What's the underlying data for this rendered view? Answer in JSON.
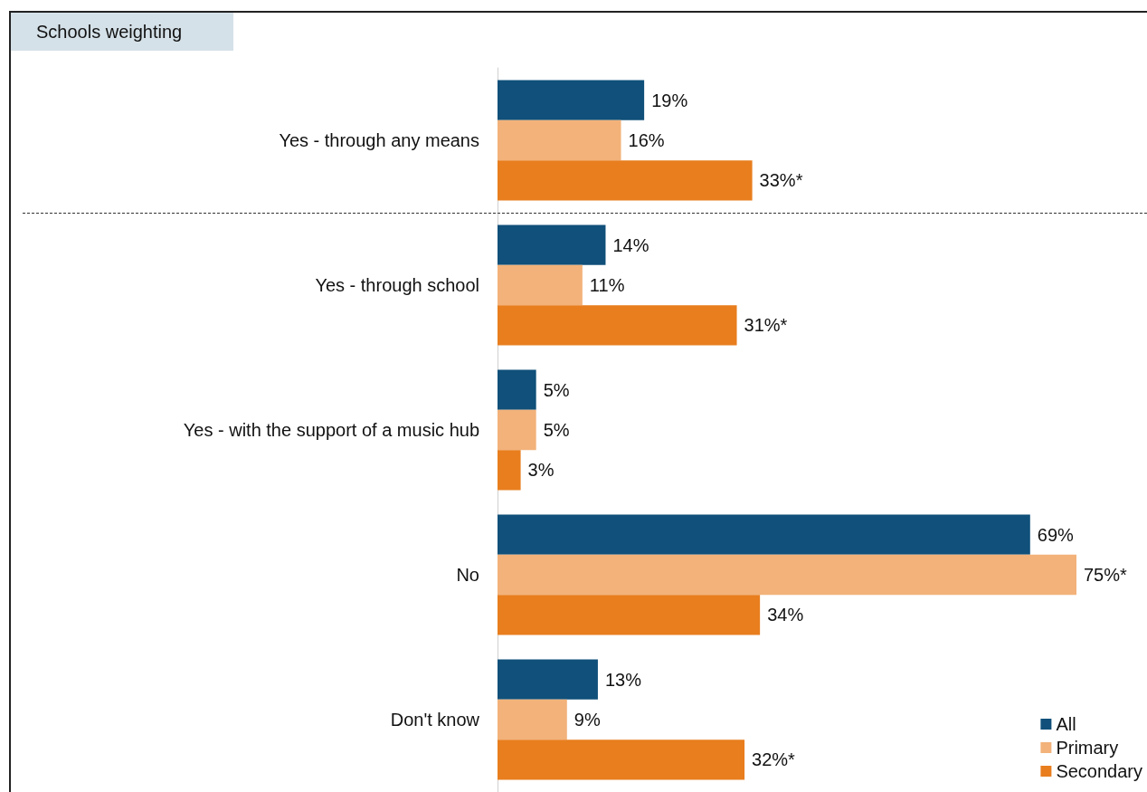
{
  "chart_data": {
    "type": "bar",
    "orientation": "horizontal",
    "title": "Schools weighting",
    "categories": [
      "Yes - through any means",
      "Yes - through school",
      "Yes - with the support of a music hub",
      "No",
      "Don't know"
    ],
    "series": [
      {
        "name": "All",
        "color": "#10507a",
        "values": [
          19,
          14,
          5,
          69,
          13
        ],
        "value_labels": [
          "19%",
          "14%",
          "5%",
          "69%",
          "13%"
        ]
      },
      {
        "name": "Primary",
        "color": "#f2b27a",
        "values": [
          16,
          11,
          5,
          75,
          9
        ],
        "value_labels": [
          "16%",
          "11%",
          "5%",
          "75%*",
          "9%"
        ]
      },
      {
        "name": "Secondary",
        "color": "#e87e1e",
        "values": [
          33,
          31,
          3,
          34,
          32
        ],
        "value_labels": [
          "33%*",
          "31%*",
          "3%",
          "34%",
          "32%*"
        ]
      }
    ],
    "legend": "bottom right",
    "tick_labels": "y"
  }
}
